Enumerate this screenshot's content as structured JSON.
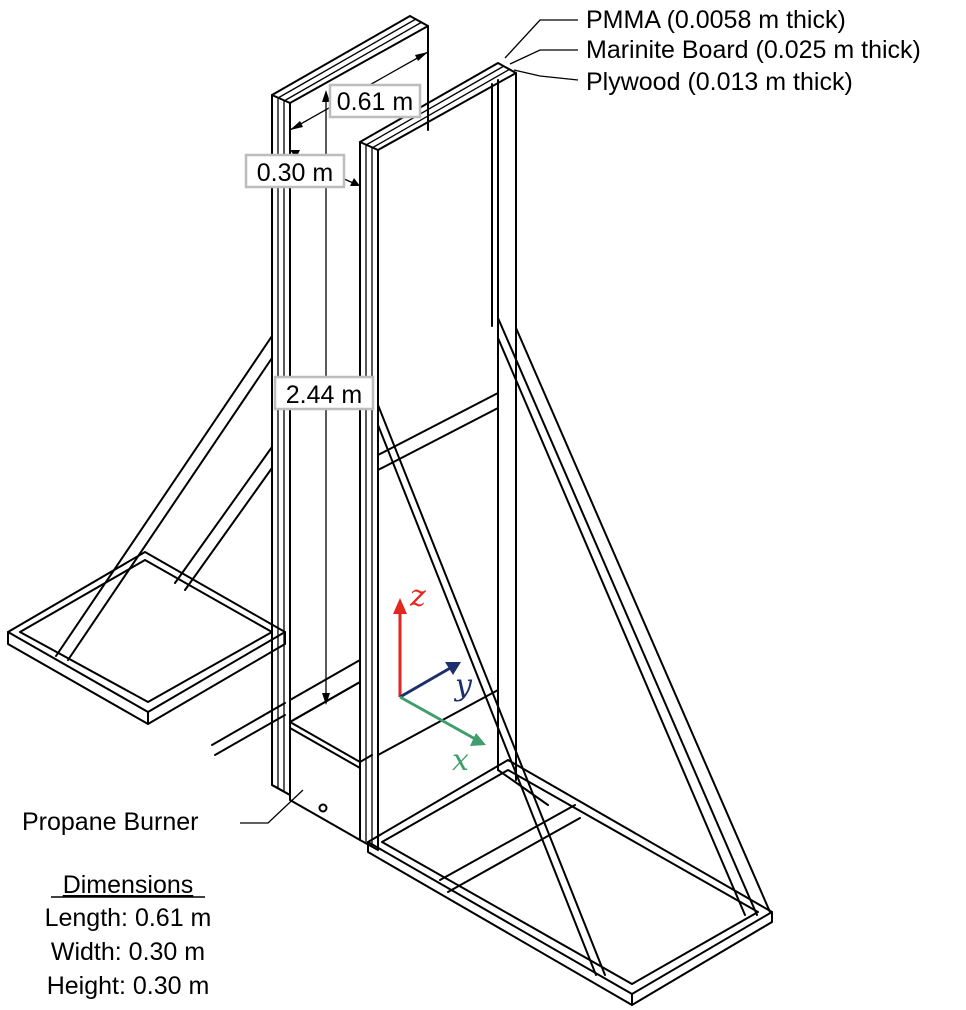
{
  "layers": {
    "pmma": "PMMA (0.0058 m thick)",
    "marinite": "Marinite Board (0.025 m thick)",
    "plywood": "Plywood (0.013 m thick)"
  },
  "dimensions_on_figure": {
    "width": "0.61 m",
    "gap": "0.30 m",
    "height": "2.44 m"
  },
  "axes": {
    "z": {
      "label": "z",
      "color": "#e3261f"
    },
    "y": {
      "label": "y",
      "color": "#1b2f6b"
    },
    "x": {
      "label": "x",
      "color": "#3f9e6b"
    }
  },
  "burner": {
    "label": "Propane Burner",
    "dimensions_heading": "Dimensions",
    "length": "Length: 0.61 m",
    "width": "Width: 0.30 m",
    "height": "Height: 0.30 m"
  }
}
